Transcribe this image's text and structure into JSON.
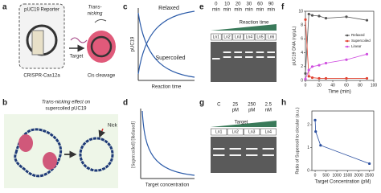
{
  "panel_a": {
    "label": "a",
    "reporter": "pUC19 Reporter",
    "trans_lines": [
      "Trans-",
      "nicking"
    ],
    "target": "Target",
    "enzyme": "CRISPR-Cas12a",
    "cis": "Cis cleavage"
  },
  "panel_b": {
    "label": "b",
    "title_lines": [
      "Trans-nicking effect on",
      "supercoiled pUC19"
    ],
    "nick": "Nick"
  },
  "panel_c": {
    "label": "c",
    "ylabel": "pUC19",
    "xlabel": "Reaction time",
    "relaxed": "Relaxed",
    "supercoiled": "Supercoiled"
  },
  "panel_d": {
    "label": "d",
    "ylabel": "[Supercoiled]/[Relaxed]",
    "xlabel": "Target concentration"
  },
  "panel_e": {
    "label": "e",
    "headers": [
      {
        "top": "0",
        "bottom": "min"
      },
      {
        "top": "10",
        "bottom": "min"
      },
      {
        "top": "20",
        "bottom": "min"
      },
      {
        "top": "30",
        "bottom": "min"
      },
      {
        "top": "60",
        "bottom": "min"
      },
      {
        "top": "90",
        "bottom": "min"
      }
    ],
    "gradient_label": "Reaction time",
    "lanes": [
      "Ln1",
      "Ln2",
      "Ln3",
      "Ln4",
      "Ln5",
      "Ln6"
    ]
  },
  "panel_g": {
    "label": "g",
    "headers": [
      {
        "top": "C"
      },
      {
        "top": "25",
        "bottom": "pM"
      },
      {
        "top": "250",
        "bottom": "pM"
      },
      {
        "top": "2.5",
        "bottom": "nM"
      }
    ],
    "gradient_label": "Target",
    "lanes": [
      "Ln1",
      "Ln2",
      "Ln3",
      "Ln4"
    ]
  },
  "chart_data": [
    {
      "type": "line",
      "label": "f",
      "xlabel": "Time (min)",
      "ylabel": "pUC19 DNA (ng/μL)",
      "x": [
        0,
        5,
        10,
        20,
        30,
        60,
        90
      ],
      "series": [
        {
          "name": "Relaxed",
          "color": "#555555",
          "values": [
            1.0,
            9.6,
            9.4,
            9.3,
            9.0,
            9.2,
            8.7
          ]
        },
        {
          "name": "Supercoiled",
          "color": "#e0402f",
          "values": [
            8.8,
            0.6,
            0.4,
            0.3,
            0.3,
            0.3,
            0.3
          ]
        },
        {
          "name": "Linear",
          "color": "#d050e0",
          "values": [
            0.2,
            1.5,
            2.0,
            2.2,
            2.5,
            3.0,
            3.8
          ]
        }
      ],
      "xlim": [
        0,
        100
      ],
      "xticks": [
        0,
        20,
        40,
        60,
        80,
        100
      ],
      "ylim": [
        0,
        10
      ],
      "yticks": [
        0,
        2,
        4,
        6,
        8,
        10
      ],
      "legend": "right"
    },
    {
      "type": "line",
      "label": "h",
      "xlabel": "Target Concentration (pM)",
      "ylabel": "Ratio of Supercoil to circular (a.u.)",
      "x": [
        0,
        25,
        250,
        2500
      ],
      "series": [
        {
          "name": "Ratio",
          "color": "#2a4fa0",
          "values": [
            2.2,
            1.7,
            1.1,
            0.3
          ]
        }
      ],
      "xlim": [
        -150,
        2700
      ],
      "xticks": [
        0,
        500,
        1000,
        1500,
        2000,
        2500
      ],
      "ylim": [
        0,
        2.6
      ],
      "yticks": [
        0,
        1,
        2
      ]
    }
  ]
}
